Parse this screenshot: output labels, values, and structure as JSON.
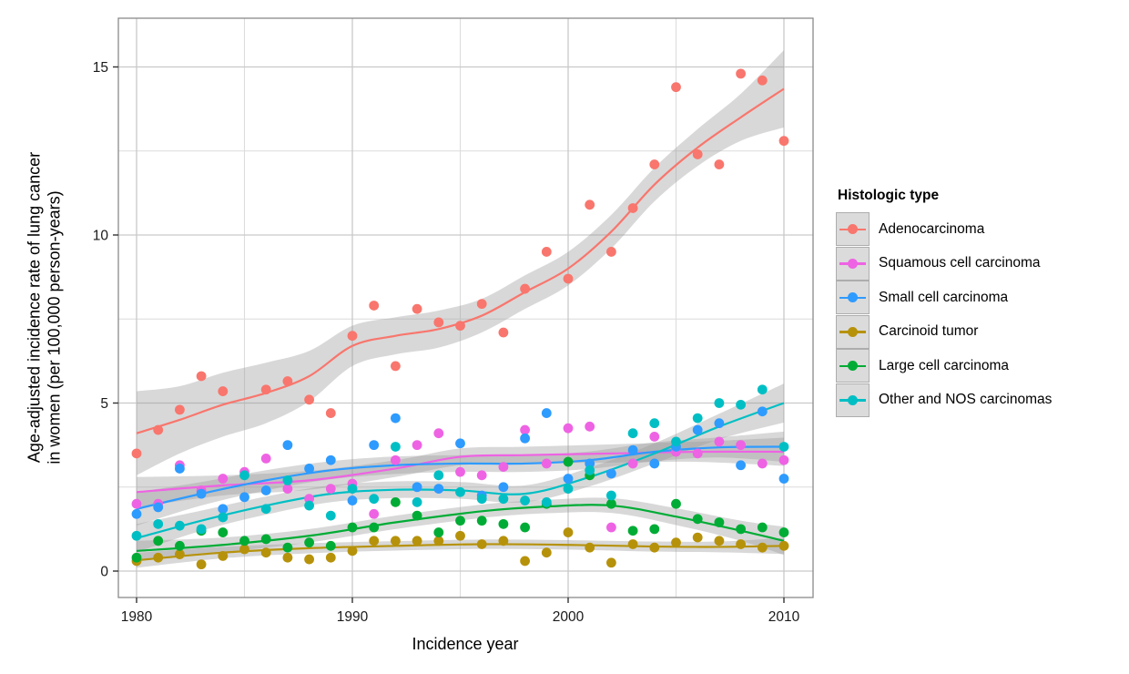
{
  "chart_data": {
    "type": "scatter",
    "subtype": "scatter with loess smooth lines and confidence bands",
    "xlabel": "Incidence year",
    "ylabel_line1": "Age-adjusted incidence rate of lung cancer",
    "ylabel_line2": "in women (per 100,000 person-years)",
    "legend_title": "Histologic type",
    "x_ticks": [
      1980,
      1990,
      2000,
      2010
    ],
    "x_minor_ticks": [
      1985,
      1995,
      2005
    ],
    "y_ticks": [
      0,
      5,
      10,
      15
    ],
    "y_minor_ticks": [
      2.5,
      7.5,
      12.5
    ],
    "x_range": [
      1979.2,
      2011.4
    ],
    "y_range": [
      -0.8,
      16.4
    ],
    "grid": "on",
    "legend_position": "right",
    "band_color": "#999999",
    "band_opacity": 0.38,
    "series": [
      {
        "name": "Adenocarcinoma",
        "color": "#F8766D",
        "points": [
          [
            1980,
            3.5
          ],
          [
            1981,
            4.2
          ],
          [
            1982,
            4.8
          ],
          [
            1983,
            5.8
          ],
          [
            1984,
            5.35
          ],
          [
            1986,
            5.4
          ],
          [
            1987,
            5.65
          ],
          [
            1988,
            5.1
          ],
          [
            1989,
            4.7
          ],
          [
            1990,
            7.0
          ],
          [
            1991,
            7.9
          ],
          [
            1992,
            6.1
          ],
          [
            1993,
            7.8
          ],
          [
            1994,
            7.4
          ],
          [
            1995,
            7.3
          ],
          [
            1996,
            7.95
          ],
          [
            1997,
            7.1
          ],
          [
            1998,
            8.4
          ],
          [
            1999,
            9.5
          ],
          [
            2000,
            8.7
          ],
          [
            2001,
            10.9
          ],
          [
            2002,
            9.5
          ],
          [
            2003,
            10.8
          ],
          [
            2004,
            12.1
          ],
          [
            2005,
            14.4
          ],
          [
            2006,
            12.4
          ],
          [
            2007,
            12.1
          ],
          [
            2008,
            14.8
          ],
          [
            2009,
            14.6
          ],
          [
            2010,
            12.8
          ]
        ],
        "smooth": [
          [
            1980,
            4.1
          ],
          [
            1982,
            4.5
          ],
          [
            1984,
            4.95
          ],
          [
            1986,
            5.3
          ],
          [
            1988,
            5.8
          ],
          [
            1990,
            6.7
          ],
          [
            1992,
            7.0
          ],
          [
            1994,
            7.2
          ],
          [
            1996,
            7.6
          ],
          [
            1998,
            8.3
          ],
          [
            2000,
            9.0
          ],
          [
            2002,
            10.1
          ],
          [
            2004,
            11.5
          ],
          [
            2006,
            12.6
          ],
          [
            2008,
            13.5
          ],
          [
            2010,
            14.35
          ]
        ],
        "band_halfwidth": [
          1.25,
          1.0,
          0.95,
          0.9,
          0.75,
          0.6,
          0.55,
          0.55,
          0.5,
          0.5,
          0.5,
          0.5,
          0.5,
          0.55,
          0.7,
          1.15
        ]
      },
      {
        "name": "Squamous cell carcinoma",
        "color": "#EE63E3",
        "points": [
          [
            1980,
            2.0
          ],
          [
            1981,
            2.0
          ],
          [
            1982,
            3.15
          ],
          [
            1983,
            2.4
          ],
          [
            1984,
            2.75
          ],
          [
            1985,
            2.95
          ],
          [
            1986,
            3.35
          ],
          [
            1987,
            2.45
          ],
          [
            1988,
            2.15
          ],
          [
            1989,
            2.45
          ],
          [
            1990,
            2.6
          ],
          [
            1991,
            1.7
          ],
          [
            1992,
            3.3
          ],
          [
            1993,
            3.75
          ],
          [
            1994,
            4.1
          ],
          [
            1995,
            2.95
          ],
          [
            1996,
            2.85
          ],
          [
            1997,
            3.1
          ],
          [
            1998,
            4.2
          ],
          [
            1999,
            3.2
          ],
          [
            2000,
            4.25
          ],
          [
            2001,
            4.3
          ],
          [
            2002,
            1.3
          ],
          [
            2003,
            3.2
          ],
          [
            2004,
            4.0
          ],
          [
            2005,
            3.55
          ],
          [
            2006,
            3.5
          ],
          [
            2007,
            3.85
          ],
          [
            2008,
            3.75
          ],
          [
            2009,
            3.2
          ],
          [
            2010,
            3.3
          ]
        ],
        "smooth": [
          [
            1980,
            2.35
          ],
          [
            1984,
            2.55
          ],
          [
            1988,
            2.7
          ],
          [
            1992,
            3.05
          ],
          [
            1995,
            3.4
          ],
          [
            1998,
            3.45
          ],
          [
            2002,
            3.5
          ],
          [
            2006,
            3.55
          ],
          [
            2010,
            3.55
          ]
        ],
        "band_halfwidth": [
          0.45,
          0.3,
          0.28,
          0.25,
          0.25,
          0.25,
          0.27,
          0.3,
          0.42
        ]
      },
      {
        "name": "Small cell carcinoma",
        "color": "#2E9BFF",
        "points": [
          [
            1980,
            1.7
          ],
          [
            1981,
            1.9
          ],
          [
            1982,
            3.05
          ],
          [
            1983,
            2.3
          ],
          [
            1984,
            1.85
          ],
          [
            1985,
            2.2
          ],
          [
            1986,
            2.4
          ],
          [
            1987,
            3.75
          ],
          [
            1988,
            3.05
          ],
          [
            1989,
            3.3
          ],
          [
            1990,
            2.1
          ],
          [
            1991,
            3.75
          ],
          [
            1992,
            4.55
          ],
          [
            1993,
            2.5
          ],
          [
            1994,
            2.45
          ],
          [
            1995,
            3.8
          ],
          [
            1996,
            2.25
          ],
          [
            1997,
            2.5
          ],
          [
            1998,
            3.95
          ],
          [
            1999,
            4.7
          ],
          [
            2000,
            2.75
          ],
          [
            2001,
            3.2
          ],
          [
            2002,
            2.9
          ],
          [
            2003,
            3.6
          ],
          [
            2004,
            3.2
          ],
          [
            2005,
            3.7
          ],
          [
            2006,
            4.2
          ],
          [
            2007,
            4.4
          ],
          [
            2008,
            3.15
          ],
          [
            2009,
            4.75
          ],
          [
            2010,
            2.75
          ]
        ],
        "smooth": [
          [
            1980,
            1.85
          ],
          [
            1983,
            2.3
          ],
          [
            1986,
            2.7
          ],
          [
            1989,
            3.0
          ],
          [
            1992,
            3.15
          ],
          [
            1995,
            3.2
          ],
          [
            1998,
            3.2
          ],
          [
            2001,
            3.3
          ],
          [
            2004,
            3.55
          ],
          [
            2007,
            3.68
          ],
          [
            2010,
            3.7
          ]
        ],
        "band_halfwidth": [
          0.5,
          0.35,
          0.3,
          0.27,
          0.26,
          0.25,
          0.25,
          0.26,
          0.28,
          0.3,
          0.45
        ]
      },
      {
        "name": "Carcinoid tumor",
        "color": "#B6920B",
        "points": [
          [
            1980,
            0.3
          ],
          [
            1981,
            0.4
          ],
          [
            1982,
            0.5
          ],
          [
            1983,
            0.2
          ],
          [
            1984,
            0.45
          ],
          [
            1985,
            0.65
          ],
          [
            1986,
            0.55
          ],
          [
            1987,
            0.4
          ],
          [
            1988,
            0.35
          ],
          [
            1989,
            0.4
          ],
          [
            1990,
            0.6
          ],
          [
            1991,
            0.9
          ],
          [
            1992,
            0.9
          ],
          [
            1993,
            0.9
          ],
          [
            1994,
            0.9
          ],
          [
            1995,
            1.05
          ],
          [
            1996,
            0.8
          ],
          [
            1997,
            0.9
          ],
          [
            1998,
            0.3
          ],
          [
            1999,
            0.55
          ],
          [
            2000,
            1.15
          ],
          [
            2001,
            0.7
          ],
          [
            2002,
            0.25
          ],
          [
            2003,
            0.8
          ],
          [
            2004,
            0.7
          ],
          [
            2005,
            0.85
          ],
          [
            2006,
            1.0
          ],
          [
            2007,
            0.9
          ],
          [
            2008,
            0.8
          ],
          [
            2009,
            0.7
          ],
          [
            2010,
            0.75
          ]
        ],
        "smooth": [
          [
            1980,
            0.32
          ],
          [
            1984,
            0.55
          ],
          [
            1988,
            0.68
          ],
          [
            1992,
            0.75
          ],
          [
            1996,
            0.8
          ],
          [
            2000,
            0.78
          ],
          [
            2004,
            0.73
          ],
          [
            2007,
            0.72
          ],
          [
            2010,
            0.75
          ]
        ],
        "band_halfwidth": [
          0.22,
          0.17,
          0.15,
          0.14,
          0.14,
          0.14,
          0.15,
          0.16,
          0.24
        ]
      },
      {
        "name": "Large cell carcinoma",
        "color": "#00AC35",
        "points": [
          [
            1980,
            0.4
          ],
          [
            1981,
            0.9
          ],
          [
            1982,
            0.75
          ],
          [
            1983,
            1.2
          ],
          [
            1984,
            1.15
          ],
          [
            1985,
            0.9
          ],
          [
            1986,
            0.95
          ],
          [
            1987,
            0.7
          ],
          [
            1988,
            0.85
          ],
          [
            1989,
            0.75
          ],
          [
            1990,
            1.3
          ],
          [
            1991,
            1.3
          ],
          [
            1992,
            2.05
          ],
          [
            1993,
            1.65
          ],
          [
            1994,
            1.15
          ],
          [
            1995,
            1.5
          ],
          [
            1996,
            1.5
          ],
          [
            1997,
            1.4
          ],
          [
            1998,
            1.3
          ],
          [
            1999,
            2.0
          ],
          [
            2000,
            3.25
          ],
          [
            2001,
            2.85
          ],
          [
            2002,
            2.0
          ],
          [
            2003,
            1.2
          ],
          [
            2004,
            1.25
          ],
          [
            2005,
            2.0
          ],
          [
            2006,
            1.55
          ],
          [
            2007,
            1.45
          ],
          [
            2008,
            1.25
          ],
          [
            2009,
            1.3
          ],
          [
            2010,
            1.15
          ]
        ],
        "smooth": [
          [
            1980,
            0.6
          ],
          [
            1984,
            0.78
          ],
          [
            1988,
            1.05
          ],
          [
            1992,
            1.45
          ],
          [
            1996,
            1.78
          ],
          [
            1999,
            1.92
          ],
          [
            2002,
            1.95
          ],
          [
            2005,
            1.62
          ],
          [
            2008,
            1.2
          ],
          [
            2010,
            0.9
          ]
        ],
        "band_halfwidth": [
          0.3,
          0.22,
          0.2,
          0.2,
          0.2,
          0.2,
          0.22,
          0.25,
          0.3,
          0.42
        ]
      },
      {
        "name": "Other and NOS carcinomas",
        "color": "#00BFC4",
        "points": [
          [
            1980,
            1.05
          ],
          [
            1981,
            1.4
          ],
          [
            1982,
            1.35
          ],
          [
            1983,
            1.25
          ],
          [
            1984,
            1.6
          ],
          [
            1985,
            2.85
          ],
          [
            1986,
            1.85
          ],
          [
            1987,
            2.7
          ],
          [
            1988,
            1.95
          ],
          [
            1989,
            1.65
          ],
          [
            1990,
            2.45
          ],
          [
            1991,
            2.15
          ],
          [
            1992,
            3.7
          ],
          [
            1993,
            2.05
          ],
          [
            1994,
            2.85
          ],
          [
            1995,
            2.35
          ],
          [
            1996,
            2.15
          ],
          [
            1997,
            2.15
          ],
          [
            1998,
            2.1
          ],
          [
            1999,
            2.05
          ],
          [
            2000,
            2.45
          ],
          [
            2001,
            3.0
          ],
          [
            2002,
            2.25
          ],
          [
            2003,
            4.1
          ],
          [
            2004,
            4.4
          ],
          [
            2005,
            3.85
          ],
          [
            2006,
            4.55
          ],
          [
            2007,
            5.0
          ],
          [
            2008,
            4.95
          ],
          [
            2009,
            5.4
          ],
          [
            2010,
            3.7
          ]
        ],
        "smooth": [
          [
            1980,
            0.98
          ],
          [
            1983,
            1.5
          ],
          [
            1986,
            1.95
          ],
          [
            1989,
            2.3
          ],
          [
            1992,
            2.42
          ],
          [
            1995,
            2.4
          ],
          [
            1998,
            2.3
          ],
          [
            2001,
            2.8
          ],
          [
            2004,
            3.5
          ],
          [
            2007,
            4.3
          ],
          [
            2010,
            5.0
          ]
        ],
        "band_halfwidth": [
          0.42,
          0.3,
          0.27,
          0.25,
          0.25,
          0.25,
          0.25,
          0.28,
          0.3,
          0.38,
          0.58
        ]
      }
    ]
  }
}
